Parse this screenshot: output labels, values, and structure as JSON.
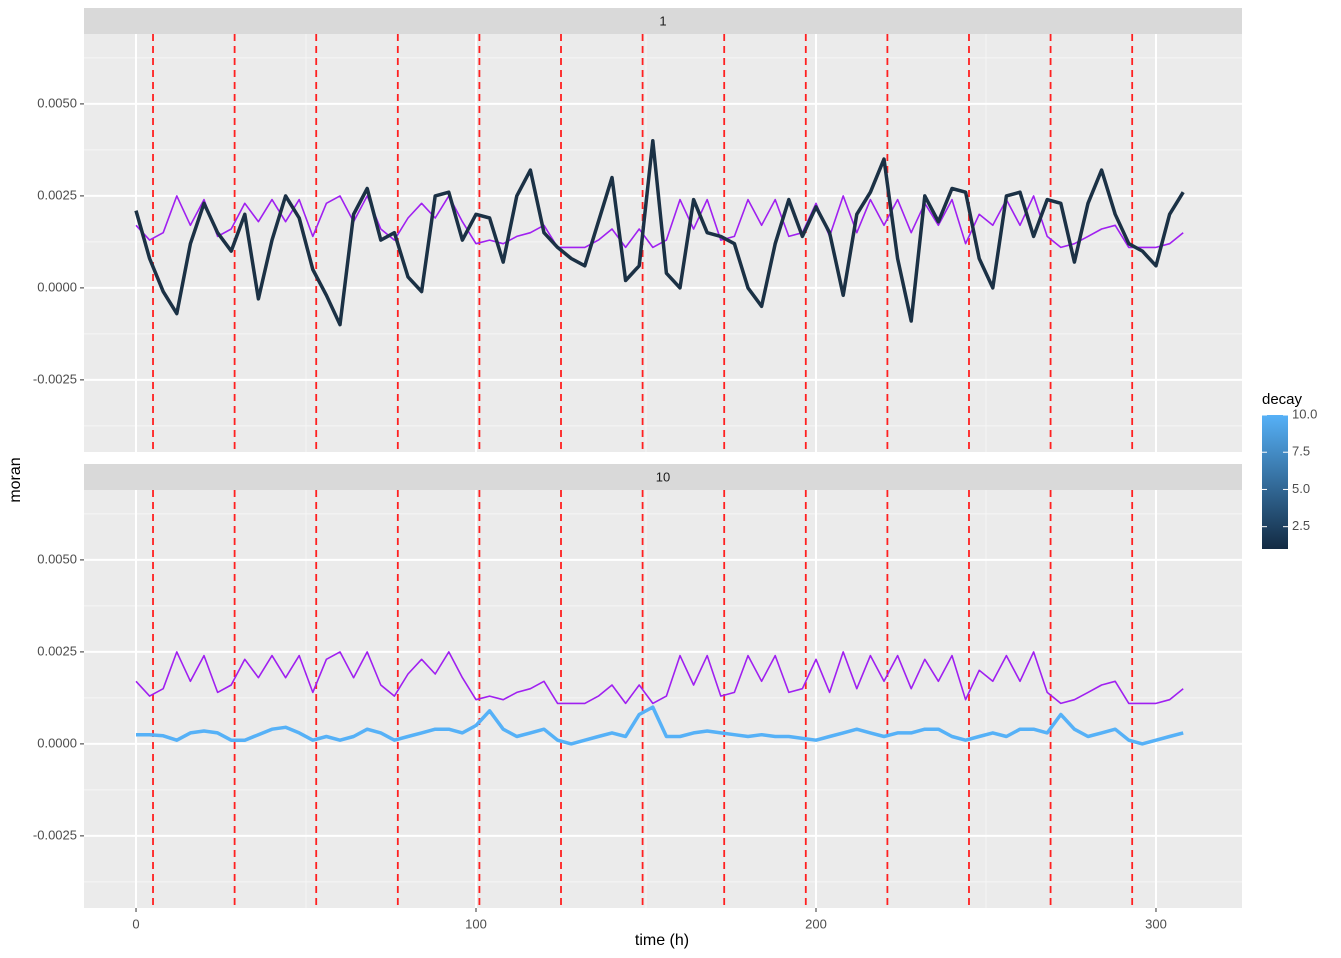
{
  "chart_data": {
    "type": "line",
    "xlabel": "time (h)",
    "ylabel": "moran",
    "xlim": [
      -15.3,
      325.3
    ],
    "xticks": [
      0,
      100,
      200,
      300
    ],
    "xminor": [
      50,
      150,
      250
    ],
    "ylim": [
      -0.00446,
      0.0069
    ],
    "yticks": [
      -0.0025,
      {
        "value": 0,
        "label": "0.0000"
      },
      0.0025,
      {
        "value": 0.005,
        "label": "0.0050"
      }
    ],
    "yminor": [
      -0.00375,
      -0.00125,
      0.00125,
      0.00375,
      0.00625
    ],
    "grid": true,
    "vlines": {
      "color": "#ff2020",
      "values": [
        5,
        29,
        53,
        77,
        101,
        125,
        149,
        173,
        197,
        221,
        245,
        269,
        293
      ]
    },
    "legend": {
      "title": "decay",
      "position": "right",
      "limits": [
        1,
        10
      ],
      "colors": [
        "#132b43",
        "#56b1f7"
      ],
      "ticks": [
        2.5,
        {
          "value": 5,
          "label": "5.0"
        },
        {
          "value": 7.5,
          "label": "7.5"
        },
        {
          "value": 10,
          "label": "10.0"
        }
      ]
    },
    "x": [
      0,
      4,
      8,
      12,
      16,
      20,
      24,
      28,
      32,
      36,
      40,
      44,
      48,
      52,
      56,
      60,
      64,
      68,
      72,
      76,
      80,
      84,
      88,
      92,
      96,
      100,
      104,
      108,
      112,
      116,
      120,
      124,
      128,
      132,
      136,
      140,
      144,
      148,
      152,
      156,
      160,
      164,
      168,
      172,
      176,
      180,
      184,
      188,
      192,
      196,
      200,
      204,
      208,
      212,
      216,
      220,
      224,
      228,
      232,
      236,
      240,
      244,
      248,
      252,
      256,
      260,
      264,
      268,
      272,
      276,
      280,
      284,
      288,
      292,
      296,
      300,
      304,
      308
    ],
    "facets": [
      {
        "label": "1",
        "series": [
          {
            "color": "#a020f0",
            "width": 1.6,
            "values": [
              0.0017,
              0.0013,
              0.0015,
              0.0025,
              0.0017,
              0.0024,
              0.0014,
              0.0016,
              0.0023,
              0.0018,
              0.0024,
              0.0018,
              0.0024,
              0.0014,
              0.0023,
              0.0025,
              0.0018,
              0.0025,
              0.0016,
              0.0013,
              0.0019,
              0.0023,
              0.0019,
              0.0025,
              0.0018,
              0.0012,
              0.0013,
              0.0012,
              0.0014,
              0.0015,
              0.0017,
              0.0011,
              0.0011,
              0.0011,
              0.0013,
              0.0016,
              0.0011,
              0.0016,
              0.0011,
              0.0013,
              0.0024,
              0.0016,
              0.0024,
              0.0013,
              0.0014,
              0.0024,
              0.0017,
              0.0024,
              0.0014,
              0.0015,
              0.0023,
              0.0014,
              0.0025,
              0.0015,
              0.0024,
              0.0017,
              0.0024,
              0.0015,
              0.0023,
              0.0017,
              0.0024,
              0.0012,
              0.002,
              0.0017,
              0.0024,
              0.0017,
              0.0025,
              0.0014,
              0.0011,
              0.0012,
              0.0014,
              0.0016,
              0.0017,
              0.0011,
              0.0011,
              0.0011,
              0.0012,
              0.0015
            ]
          },
          {
            "color": "#1b3145",
            "width": 3.5,
            "values": [
              0.0021,
              0.0008,
              -0.0001,
              -0.0007,
              0.0012,
              0.0023,
              0.0015,
              0.001,
              0.002,
              -0.0003,
              0.0013,
              0.0025,
              0.0019,
              0.0005,
              -0.0002,
              -0.001,
              0.002,
              0.0027,
              0.0013,
              0.0015,
              0.0003,
              -0.0001,
              0.0025,
              0.0026,
              0.0013,
              0.002,
              0.0019,
              0.0007,
              0.0025,
              0.0032,
              0.0015,
              0.0011,
              0.0008,
              0.0006,
              0.0018,
              0.003,
              0.0002,
              0.0006,
              0.004,
              0.0004,
              0,
              0.0024,
              0.0015,
              0.0014,
              0.0012,
              0,
              -0.0005,
              0.0012,
              0.0024,
              0.0014,
              0.0022,
              0.0015,
              -0.0002,
              0.002,
              0.0026,
              0.0035,
              0.0008,
              -0.0009,
              0.0025,
              0.0018,
              0.0027,
              0.0026,
              0.0008,
              0,
              0.0025,
              0.0026,
              0.0014,
              0.0024,
              0.0023,
              0.0007,
              0.0023,
              0.0032,
              0.002,
              0.0012,
              0.001,
              0.0006,
              0.002,
              0.0026
            ]
          }
        ]
      },
      {
        "label": "10",
        "series": [
          {
            "color": "#a020f0",
            "width": 1.6,
            "values": [
              0.0017,
              0.0013,
              0.0015,
              0.0025,
              0.0017,
              0.0024,
              0.0014,
              0.0016,
              0.0023,
              0.0018,
              0.0024,
              0.0018,
              0.0024,
              0.0014,
              0.0023,
              0.0025,
              0.0018,
              0.0025,
              0.0016,
              0.0013,
              0.0019,
              0.0023,
              0.0019,
              0.0025,
              0.0018,
              0.0012,
              0.0013,
              0.0012,
              0.0014,
              0.0015,
              0.0017,
              0.0011,
              0.0011,
              0.0011,
              0.0013,
              0.0016,
              0.0011,
              0.0016,
              0.0011,
              0.0013,
              0.0024,
              0.0016,
              0.0024,
              0.0013,
              0.0014,
              0.0024,
              0.0017,
              0.0024,
              0.0014,
              0.0015,
              0.0023,
              0.0014,
              0.0025,
              0.0015,
              0.0024,
              0.0017,
              0.0024,
              0.0015,
              0.0023,
              0.0017,
              0.0024,
              0.0012,
              0.002,
              0.0017,
              0.0024,
              0.0017,
              0.0025,
              0.0014,
              0.0011,
              0.0012,
              0.0014,
              0.0016,
              0.0017,
              0.0011,
              0.0011,
              0.0011,
              0.0012,
              0.0015
            ]
          },
          {
            "color": "#56b1f7",
            "width": 3.5,
            "values": [
              0.00025,
              0.00025,
              0.00022,
              0.0001,
              0.0003,
              0.00035,
              0.0003,
              0.0001,
              0.0001,
              0.00025,
              0.0004,
              0.00045,
              0.0003,
              0.0001,
              0.0002,
              0.0001,
              0.0002,
              0.0004,
              0.0003,
              0.0001,
              0.0002,
              0.0003,
              0.0004,
              0.0004,
              0.0003,
              0.0005,
              0.0009,
              0.0004,
              0.0002,
              0.0003,
              0.0004,
              0.0001,
              0,
              0.0001,
              0.0002,
              0.0003,
              0.0002,
              0.0008,
              0.001,
              0.0002,
              0.0002,
              0.0003,
              0.00035,
              0.0003,
              0.00025,
              0.0002,
              0.00025,
              0.0002,
              0.0002,
              0.00015,
              0.0001,
              0.0002,
              0.0003,
              0.0004,
              0.0003,
              0.0002,
              0.0003,
              0.0003,
              0.0004,
              0.0004,
              0.0002,
              0.0001,
              0.0002,
              0.0003,
              0.0002,
              0.0004,
              0.0004,
              0.0003,
              0.0008,
              0.0004,
              0.0002,
              0.0003,
              0.0004,
              0.0001,
              0,
              0.0001,
              0.0002,
              0.0003
            ]
          }
        ]
      }
    ]
  }
}
